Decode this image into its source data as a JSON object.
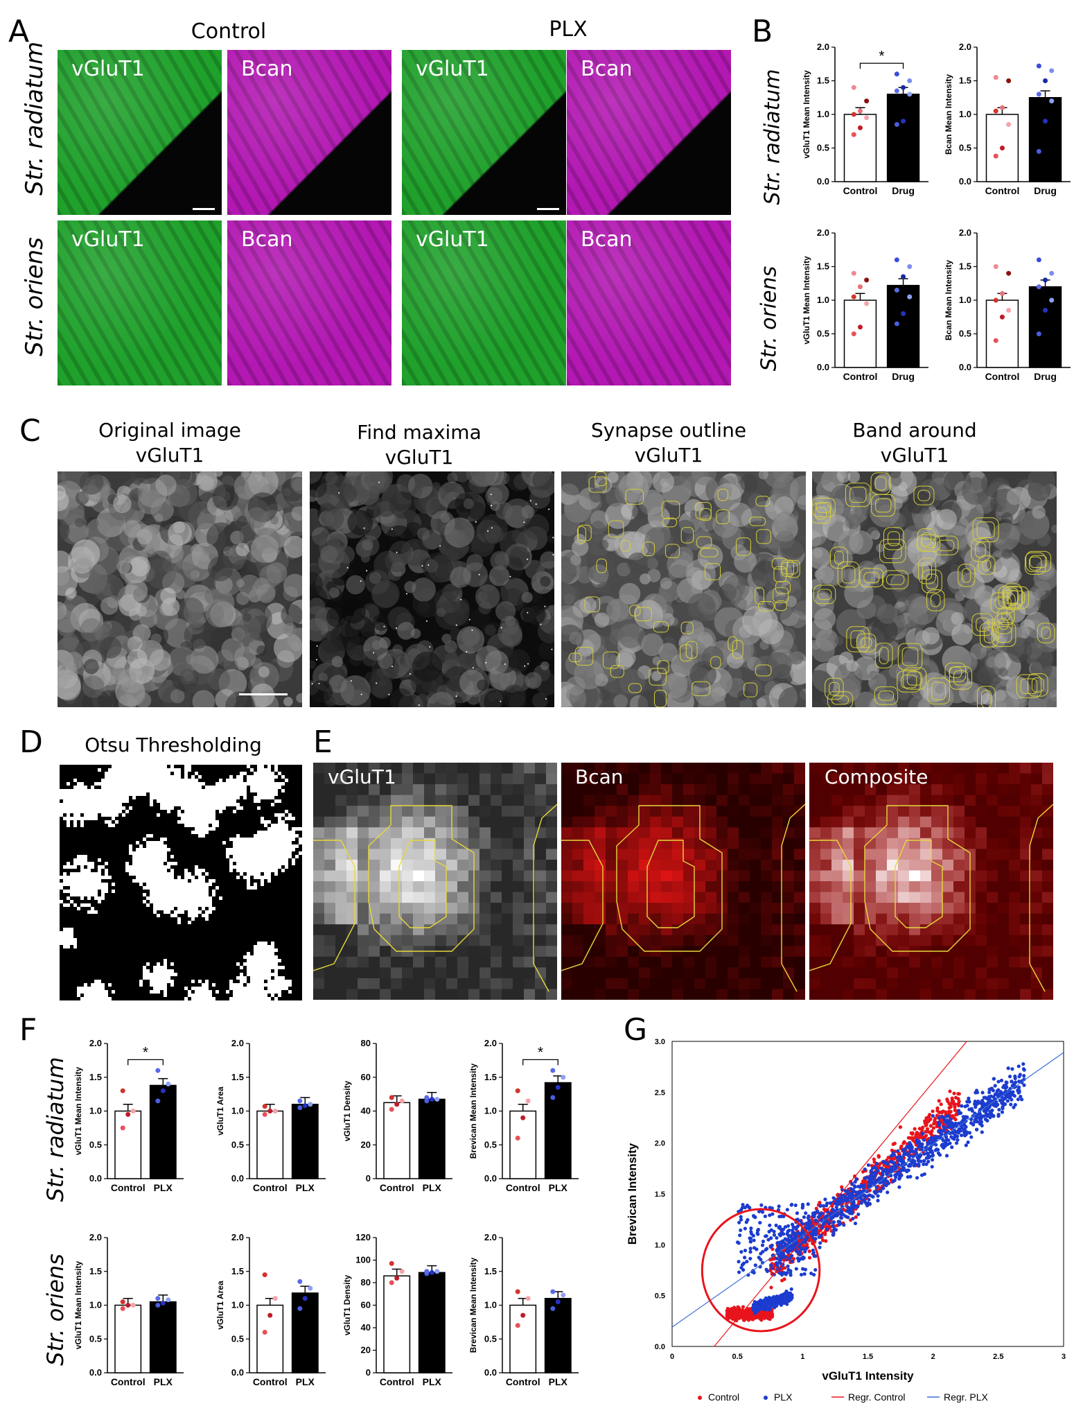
{
  "panels": {
    "A": "A",
    "B": "B",
    "C": "C",
    "D": "D",
    "E": "E",
    "F": "F",
    "G": "G"
  },
  "panelA": {
    "col_control": "Control",
    "col_plx": "PLX",
    "row_radiatum": "Str. radiatum",
    "row_oriens": "Str. oriens",
    "tiles": [
      {
        "label": "vGluT1",
        "color": "#1fa12b"
      },
      {
        "label": "Bcan",
        "color": "#b318b3"
      },
      {
        "label": "vGluT1",
        "color": "#1fa12b"
      },
      {
        "label": "Bcan",
        "color": "#b318b3"
      },
      {
        "label": "vGluT1",
        "color": "#1fa12b"
      },
      {
        "label": "Bcan",
        "color": "#b318b3"
      },
      {
        "label": "vGluT1",
        "color": "#1fa12b"
      },
      {
        "label": "Bcan",
        "color": "#b318b3"
      }
    ]
  },
  "panelB": {
    "row_radiatum": "Str. radiatum",
    "row_oriens": "Str. oriens",
    "sig": "*"
  },
  "panelC": {
    "t1a": "Original image",
    "t1b": "vGluT1",
    "t2a": "Find maxima",
    "t2b": "vGluT1",
    "t3a": "Synapse outline",
    "t3b": "vGluT1",
    "t4a": "Band around",
    "t4b": "vGluT1"
  },
  "panelD": {
    "title": "Otsu Thresholding"
  },
  "panelE": {
    "t1": "vGluT1",
    "t2": "Bcan",
    "t3": "Composite"
  },
  "panelF": {
    "row_radiatum": "Str. radiatum",
    "row_oriens": "Str. oriens",
    "sig": "*"
  },
  "chart_data": [
    {
      "type": "bar",
      "id": "B1",
      "categories": [
        "Control",
        "Drug"
      ],
      "values": [
        1.0,
        1.3
      ],
      "ylabel": "vGluT1 Mean Intensity",
      "ylim": [
        0,
        2.0
      ],
      "yticks": [
        "0.0",
        "0.5",
        "1.0",
        "1.5",
        "2.0"
      ],
      "sig": true,
      "series_colors": [
        "#ffffff",
        "#000000"
      ],
      "points": [
        [
          0.7,
          0.8,
          0.95,
          1.0,
          1.05,
          1.2,
          1.4
        ],
        [
          0.85,
          0.9,
          1.3,
          1.35,
          1.4,
          1.5,
          1.6
        ]
      ]
    },
    {
      "type": "bar",
      "id": "B2",
      "categories": [
        "Control",
        "Drug"
      ],
      "values": [
        1.0,
        1.25
      ],
      "ylabel": "Bcan Mean Intensity",
      "ylim": [
        0,
        2.0
      ],
      "yticks": [
        "0.0",
        "0.5",
        "1.0",
        "1.5",
        "2.0"
      ],
      "sig": false,
      "series_colors": [
        "#ffffff",
        "#000000"
      ],
      "points": [
        [
          0.38,
          0.5,
          0.85,
          1.05,
          1.1,
          1.5,
          1.55
        ],
        [
          0.45,
          0.9,
          1.2,
          1.3,
          1.5,
          1.65,
          1.72
        ]
      ]
    },
    {
      "type": "bar",
      "id": "B3",
      "categories": [
        "Control",
        "Drug"
      ],
      "values": [
        1.0,
        1.22
      ],
      "ylabel": "vGluT1 Mean Intensity",
      "ylim": [
        0,
        2.0
      ],
      "yticks": [
        "0.0",
        "0.5",
        "1.0",
        "1.5",
        "2.0"
      ],
      "sig": false,
      "series_colors": [
        "#ffffff",
        "#000000"
      ],
      "points": [
        [
          0.5,
          0.6,
          0.95,
          1.05,
          1.2,
          1.3,
          1.4
        ],
        [
          0.65,
          0.8,
          1.05,
          1.15,
          1.35,
          1.5,
          1.6
        ]
      ]
    },
    {
      "type": "bar",
      "id": "B4",
      "categories": [
        "Control",
        "Drug"
      ],
      "values": [
        1.0,
        1.2
      ],
      "ylabel": "Bcan Mean Intensity",
      "ylim": [
        0,
        2.0
      ],
      "yticks": [
        "0.0",
        "0.5",
        "1.0",
        "1.5",
        "2.0"
      ],
      "sig": false,
      "series_colors": [
        "#ffffff",
        "#000000"
      ],
      "points": [
        [
          0.4,
          0.75,
          0.85,
          1.0,
          1.1,
          1.4,
          1.5
        ],
        [
          0.5,
          0.85,
          1.0,
          1.2,
          1.3,
          1.4,
          1.6
        ]
      ]
    },
    {
      "type": "bar",
      "id": "F1",
      "categories": [
        "Control",
        "PLX"
      ],
      "values": [
        1.0,
        1.38
      ],
      "ylabel": "vGluT1 Mean Intensity",
      "ylim": [
        0,
        2.0
      ],
      "yticks": [
        "0.0",
        "0.5",
        "1.0",
        "1.5",
        "2.0"
      ],
      "sig": true,
      "series_colors": [
        "#ffffff",
        "#000000"
      ],
      "points": [
        [
          0.75,
          0.95,
          1.0,
          1.3
        ],
        [
          1.15,
          1.3,
          1.4,
          1.6
        ]
      ]
    },
    {
      "type": "bar",
      "id": "F2",
      "categories": [
        "Control",
        "PLX"
      ],
      "values": [
        1.0,
        1.1
      ],
      "ylabel": "vGluT1 Area",
      "ylim": [
        0,
        2.0
      ],
      "yticks": [
        "0.0",
        "0.5",
        "1.0",
        "1.5",
        "2.0"
      ],
      "sig": false,
      "series_colors": [
        "#ffffff",
        "#000000"
      ],
      "points": [
        [
          0.95,
          1.0,
          1.0,
          1.07
        ],
        [
          1.05,
          1.08,
          1.1,
          1.15
        ]
      ]
    },
    {
      "type": "bar",
      "id": "F3",
      "categories": [
        "Control",
        "PLX"
      ],
      "values": [
        45,
        47
      ],
      "ylabel": "vGluT1 Density",
      "ylim": [
        0,
        80
      ],
      "yticks": [
        "0",
        "20",
        "40",
        "60",
        "80"
      ],
      "sig": false,
      "series_colors": [
        "#ffffff",
        "#000000"
      ],
      "points": [
        [
          41,
          44,
          46,
          48
        ],
        [
          46,
          47,
          47,
          48
        ]
      ]
    },
    {
      "type": "bar",
      "id": "F4",
      "categories": [
        "Control",
        "PLX"
      ],
      "values": [
        1.0,
        1.42
      ],
      "ylabel": "Brevican Mean Intensity",
      "ylim": [
        0,
        2.0
      ],
      "yticks": [
        "0.0",
        "0.5",
        "1.0",
        "1.5",
        "2.0"
      ],
      "sig": true,
      "series_colors": [
        "#ffffff",
        "#000000"
      ],
      "points": [
        [
          0.6,
          0.9,
          1.15,
          1.3
        ],
        [
          1.2,
          1.35,
          1.5,
          1.6
        ]
      ]
    },
    {
      "type": "bar",
      "id": "F5",
      "categories": [
        "Control",
        "PLX"
      ],
      "values": [
        1.0,
        1.05
      ],
      "ylabel": "vGluT1 Mean Intensity",
      "ylim": [
        0,
        2.0
      ],
      "yticks": [
        "0.0",
        "0.5",
        "1.0",
        "1.5",
        "2.0"
      ],
      "sig": false,
      "series_colors": [
        "#ffffff",
        "#000000"
      ],
      "points": [
        [
          0.95,
          1.0,
          1.0,
          1.05
        ],
        [
          1.0,
          1.03,
          1.08,
          1.1
        ]
      ]
    },
    {
      "type": "bar",
      "id": "F6",
      "categories": [
        "Control",
        "PLX"
      ],
      "values": [
        1.0,
        1.18
      ],
      "ylabel": "vGluT1 Area",
      "ylim": [
        0,
        2.0
      ],
      "yticks": [
        "0.0",
        "0.5",
        "1.0",
        "1.5",
        "2.0"
      ],
      "sig": false,
      "series_colors": [
        "#ffffff",
        "#000000"
      ],
      "points": [
        [
          0.6,
          0.85,
          1.1,
          1.45
        ],
        [
          0.95,
          1.1,
          1.25,
          1.35
        ]
      ]
    },
    {
      "type": "bar",
      "id": "F7",
      "categories": [
        "Control",
        "PLX"
      ],
      "values": [
        86,
        89
      ],
      "ylabel": "vGluT1 Density",
      "ylim": [
        0,
        120
      ],
      "yticks": [
        "0",
        "20",
        "40",
        "60",
        "80",
        "100",
        "120"
      ],
      "sig": false,
      "series_colors": [
        "#ffffff",
        "#000000"
      ],
      "points": [
        [
          80,
          84,
          90,
          97
        ],
        [
          88,
          89,
          90,
          90
        ]
      ]
    },
    {
      "type": "bar",
      "id": "F8",
      "categories": [
        "Control",
        "PLX"
      ],
      "values": [
        1.0,
        1.1
      ],
      "ylabel": "Brevican Mean Intensity",
      "ylim": [
        0,
        2.0
      ],
      "yticks": [
        "0.0",
        "0.5",
        "1.0",
        "1.5",
        "2.0"
      ],
      "sig": false,
      "series_colors": [
        "#ffffff",
        "#000000"
      ],
      "points": [
        [
          0.7,
          0.85,
          1.1,
          1.2
        ],
        [
          0.95,
          1.05,
          1.15,
          1.2
        ]
      ]
    },
    {
      "type": "scatter",
      "id": "G",
      "xlabel": "vGluT1 Intensity",
      "ylabel": "Brevican Intensity",
      "xlim": [
        0,
        3
      ],
      "ylim": [
        0,
        3
      ],
      "xticks": [
        "0",
        "0.5",
        "1",
        "1.5",
        "2",
        "2.5",
        "3"
      ],
      "yticks": [
        "0.0",
        "0.5",
        "1.0",
        "1.5",
        "2.0",
        "2.5",
        "3.0"
      ],
      "series": [
        {
          "name": "Control",
          "color": "#e8141c",
          "marker": "dot"
        },
        {
          "name": "PLX",
          "color": "#1c3ccf",
          "marker": "dot"
        }
      ],
      "regressions": [
        {
          "name": "Regr. Control",
          "color": "#e8141c",
          "intercept": -0.5,
          "slope": 1.55
        },
        {
          "name": "Regr. PLX",
          "color": "#3b6fd4",
          "intercept": 0.19,
          "slope": 0.9
        }
      ],
      "ellipse": {
        "cx": 0.68,
        "cy": 0.75,
        "rx": 0.45,
        "ry": 0.6,
        "color": "#e8141c"
      },
      "legend": "bottom"
    }
  ]
}
